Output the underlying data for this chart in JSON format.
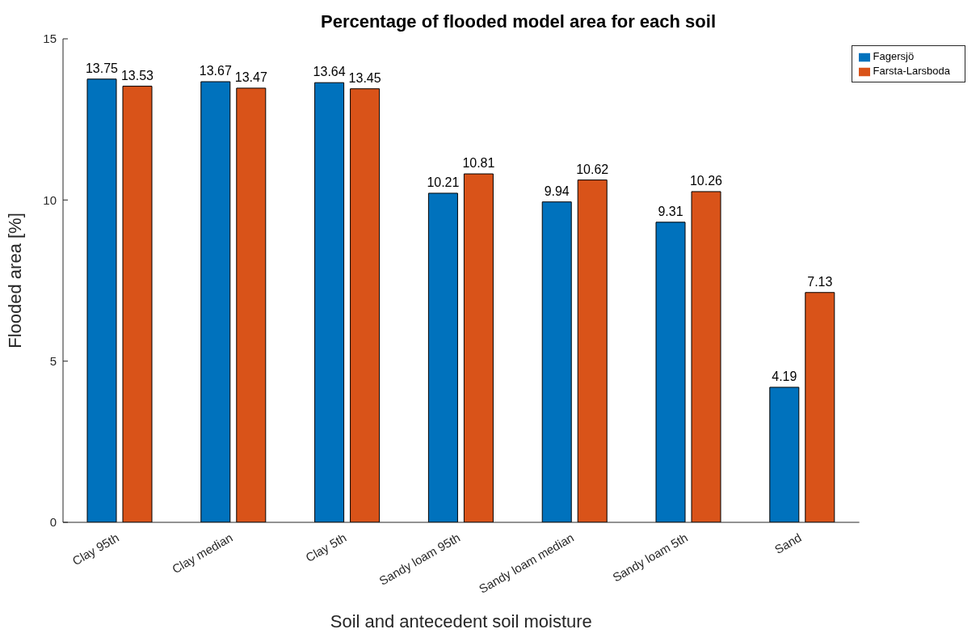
{
  "chart_data": {
    "type": "bar",
    "title": "Percentage of flooded model area for each soil",
    "xlabel": "Soil and antecedent soil moisture",
    "ylabel": "Flooded area [%]",
    "categories": [
      "Clay 95th",
      "Clay median",
      "Clay 5th",
      "Sandy loam 95th",
      "Sandy loam median",
      "Sandy loam 5th",
      "Sand"
    ],
    "series": [
      {
        "name": "Fagersjö",
        "color": "#0072bd",
        "values": [
          13.75,
          13.67,
          13.64,
          10.21,
          9.94,
          9.31,
          4.19
        ]
      },
      {
        "name": "Farsta-Larsboda",
        "color": "#d95319",
        "values": [
          13.53,
          13.47,
          13.45,
          10.81,
          10.62,
          10.26,
          7.13
        ]
      }
    ],
    "ylim": [
      0,
      15
    ],
    "yticks": [
      0,
      5,
      10,
      15
    ],
    "grid": false,
    "legend": "top right",
    "data_labels": true
  }
}
